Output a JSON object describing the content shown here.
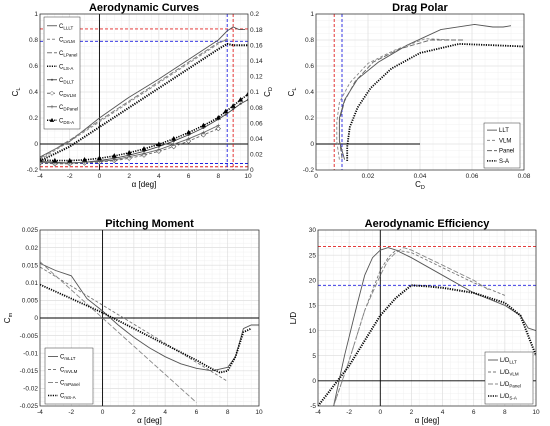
{
  "chart_data": [
    {
      "type": "line",
      "title": "Aerodynamic Curves",
      "xlabel": "α [deg]",
      "ylabel": "C",
      "ylabel_sub": "L",
      "y2label": "C",
      "y2label_sub": "D",
      "xlim": [
        -4,
        10
      ],
      "ylim": [
        -0.2,
        1.0
      ],
      "y2lim": [
        0,
        0.2
      ],
      "xticks": [
        -4,
        -2,
        0,
        2,
        4,
        6,
        8,
        10
      ],
      "yticks": [
        -0.2,
        0,
        0.2,
        0.4,
        0.6,
        0.8,
        1
      ],
      "y2ticks": [
        0,
        0.02,
        0.04,
        0.06,
        0.08,
        0.1,
        0.12,
        0.14,
        0.16,
        0.18,
        0.2
      ],
      "grid": true,
      "legend_position": "top-left",
      "series": [
        {
          "name": "C",
          "sub": "LLLT",
          "axis": "left",
          "color": "#555555",
          "dash": "",
          "marker": "",
          "x": [
            -4,
            -2,
            0,
            2,
            4,
            6,
            8,
            8.6,
            9,
            9.4,
            9.8
          ],
          "y": [
            -0.1,
            0.02,
            0.2,
            0.36,
            0.5,
            0.65,
            0.8,
            0.87,
            0.9,
            0.88,
            0.88
          ]
        },
        {
          "name": "C",
          "sub": "LVLM",
          "axis": "left",
          "color": "#888888",
          "dash": "3,2",
          "marker": "",
          "x": [
            -4,
            -2,
            0,
            2,
            4,
            6,
            8,
            8.6
          ],
          "y": [
            -0.12,
            0.02,
            0.17,
            0.32,
            0.47,
            0.62,
            0.77,
            0.81
          ]
        },
        {
          "name": "C",
          "sub": "LPanel",
          "axis": "left",
          "color": "#777777",
          "dash": "5,2",
          "marker": "",
          "x": [
            -4,
            -2,
            0,
            2,
            4,
            6,
            8,
            8.6
          ],
          "y": [
            -0.11,
            0.03,
            0.18,
            0.33,
            0.48,
            0.63,
            0.78,
            0.8
          ]
        },
        {
          "name": "C",
          "sub": "LS-A",
          "axis": "left",
          "color": "#000000",
          "dash": "1.2,1.2",
          "width": 2,
          "marker": "",
          "x": [
            -4,
            -2,
            0,
            2,
            4,
            6,
            8,
            8.6,
            9,
            10
          ],
          "y": [
            -0.13,
            -0.02,
            0.13,
            0.28,
            0.43,
            0.58,
            0.73,
            0.77,
            0.76,
            0.76
          ]
        },
        {
          "name": "C",
          "sub": "DLLT",
          "axis": "right",
          "color": "#444444",
          "dash": "",
          "marker": "dot",
          "x": [
            -4,
            -3,
            -2,
            -1,
            0,
            1,
            2,
            3,
            4,
            5,
            6,
            7,
            8,
            8.5,
            9,
            9.5,
            10
          ],
          "y": [
            0.011,
            0.01,
            0.009,
            0.01,
            0.012,
            0.015,
            0.019,
            0.024,
            0.03,
            0.037,
            0.045,
            0.054,
            0.065,
            0.071,
            0.078,
            0.085,
            0.09
          ]
        },
        {
          "name": "C",
          "sub": "DVLM",
          "axis": "right",
          "color": "#666666",
          "dash": "3,2",
          "marker": "diamond",
          "x": [
            -4,
            -3,
            -2,
            -1,
            0,
            1,
            2,
            3,
            4,
            5,
            6,
            7,
            8
          ],
          "y": [
            0.009,
            0.008,
            0.008,
            0.009,
            0.01,
            0.012,
            0.015,
            0.019,
            0.024,
            0.03,
            0.037,
            0.045,
            0.053
          ]
        },
        {
          "name": "C",
          "sub": "DPanel",
          "axis": "right",
          "color": "#666666",
          "dash": "",
          "marker": "plus",
          "x": [
            -4,
            -3,
            -2,
            -1,
            0,
            1,
            2,
            3,
            4,
            5,
            6,
            7,
            8
          ],
          "y": [
            0.01,
            0.009,
            0.009,
            0.01,
            0.011,
            0.013,
            0.017,
            0.021,
            0.026,
            0.033,
            0.04,
            0.048,
            0.057
          ]
        },
        {
          "name": "C",
          "sub": "DS-A",
          "axis": "right",
          "color": "#000000",
          "dash": "1.2,1.2",
          "width": 1.6,
          "marker": "triangle",
          "x": [
            -4,
            -3,
            -2,
            -1,
            0,
            1,
            2,
            3,
            4,
            5,
            6,
            7,
            8,
            8.5,
            9,
            9.5,
            10
          ],
          "y": [
            0.013,
            0.012,
            0.012,
            0.013,
            0.015,
            0.018,
            0.022,
            0.027,
            0.033,
            0.04,
            0.048,
            0.057,
            0.067,
            0.075,
            0.082,
            0.09,
            0.097
          ]
        }
      ],
      "refs": [
        {
          "orient": "h",
          "value": 0.885,
          "axis": "left",
          "color": "#e02020"
        },
        {
          "orient": "h",
          "value": 0.79,
          "axis": "left",
          "color": "#2020e0"
        },
        {
          "orient": "h",
          "value": -0.15,
          "axis": "left",
          "color": "#2020e0"
        },
        {
          "orient": "h",
          "value": -0.175,
          "axis": "left",
          "color": "#e02020"
        },
        {
          "orient": "v",
          "value": 9.0,
          "color": "#e02020"
        },
        {
          "orient": "v",
          "value": 8.6,
          "color": "#2020e0"
        }
      ]
    },
    {
      "type": "line",
      "title": "Drag Polar",
      "xlabel": "C",
      "xlabel_sub": "D",
      "ylabel": "C",
      "ylabel_sub": "L",
      "xlim": [
        0,
        0.08
      ],
      "ylim": [
        -0.2,
        1.0
      ],
      "xticks": [
        0,
        0.02,
        0.04,
        0.06,
        0.08
      ],
      "yticks": [
        -0.2,
        0,
        0.2,
        0.4,
        0.6,
        0.8,
        1
      ],
      "grid": true,
      "legend_position": "bottom-right",
      "series": [
        {
          "name": "LLT",
          "color": "#555555",
          "dash": "",
          "x": [
            0.011,
            0.009,
            0.009,
            0.011,
            0.016,
            0.024,
            0.035,
            0.048,
            0.061,
            0.068,
            0.072,
            0.075
          ],
          "y": [
            -0.12,
            0.02,
            0.2,
            0.34,
            0.5,
            0.63,
            0.76,
            0.88,
            0.92,
            0.9,
            0.9,
            0.91
          ]
        },
        {
          "name": "VLM",
          "color": "#888888",
          "dash": "3,2",
          "x": [
            0.009,
            0.008,
            0.008,
            0.009,
            0.013,
            0.02,
            0.03,
            0.042,
            0.053
          ],
          "y": [
            -0.12,
            0.02,
            0.17,
            0.32,
            0.47,
            0.62,
            0.72,
            0.81,
            0.8
          ]
        },
        {
          "name": "Panel",
          "color": "#666666",
          "dash": "5,2",
          "x": [
            0.01,
            0.009,
            0.009,
            0.011,
            0.015,
            0.022,
            0.032,
            0.044,
            0.057
          ],
          "y": [
            -0.11,
            0.03,
            0.18,
            0.33,
            0.48,
            0.63,
            0.73,
            0.8,
            0.8
          ]
        },
        {
          "name": "S-A",
          "color": "#000000",
          "dash": "1.2,1.2",
          "width": 1.8,
          "x": [
            0.012,
            0.012,
            0.013,
            0.016,
            0.021,
            0.029,
            0.04,
            0.055,
            0.068,
            0.08
          ],
          "y": [
            -0.13,
            -0.02,
            0.13,
            0.28,
            0.43,
            0.58,
            0.7,
            0.77,
            0.76,
            0.75
          ]
        }
      ],
      "refs": [
        {
          "orient": "v",
          "value": 0.007,
          "color": "#e02020"
        },
        {
          "orient": "v",
          "value": 0.01,
          "color": "#2020e0"
        }
      ]
    },
    {
      "type": "line",
      "title": "Pitching Moment",
      "xlabel": "α [deg]",
      "ylabel": "C",
      "ylabel_sub": "m",
      "xlim": [
        -4,
        10
      ],
      "ylim": [
        -0.025,
        0.025
      ],
      "xticks": [
        -4,
        -2,
        0,
        2,
        4,
        6,
        8,
        10
      ],
      "yticks": [
        -0.025,
        -0.02,
        -0.015,
        -0.01,
        -0.005,
        0,
        0.005,
        0.01,
        0.015,
        0.02,
        0.025
      ],
      "grid": true,
      "legend_position": "bottom-left",
      "series": [
        {
          "name": "C",
          "sub": "mLLT",
          "color": "#555555",
          "dash": "",
          "x": [
            -4,
            -3,
            -2,
            -1,
            0,
            1,
            2,
            3,
            4,
            5,
            6,
            7,
            8,
            8.5,
            9,
            9.5,
            10
          ],
          "y": [
            0.0155,
            0.0135,
            0.012,
            0.0055,
            0.002,
            -0.002,
            -0.0055,
            -0.0085,
            -0.011,
            -0.013,
            -0.0143,
            -0.015,
            -0.014,
            -0.011,
            -0.003,
            -0.002,
            -0.002
          ]
        },
        {
          "name": "C",
          "sub": "mVLM",
          "color": "#777777",
          "dash": "3,2",
          "x": [
            -4,
            8
          ],
          "y": [
            0.0145,
            -0.018
          ]
        },
        {
          "name": "C",
          "sub": "mPanel",
          "color": "#888888",
          "dash": "5,2",
          "x": [
            -4,
            6
          ],
          "y": [
            0.016,
            -0.024
          ]
        },
        {
          "name": "C",
          "sub": "mS-A",
          "color": "#000000",
          "dash": "1.2,1.2",
          "width": 1.8,
          "x": [
            -4,
            -2,
            0,
            2,
            4,
            6,
            7,
            7.5,
            8,
            8.5,
            9,
            9.5
          ],
          "y": [
            0.0095,
            0.0055,
            0.0015,
            -0.003,
            -0.0075,
            -0.012,
            -0.0145,
            -0.0155,
            -0.015,
            -0.011,
            -0.004,
            -0.003
          ]
        }
      ]
    },
    {
      "type": "line",
      "title": "Aerodynamic Efficiency",
      "xlabel": "α [deg]",
      "ylabel": "L/D",
      "xlim": [
        -4,
        10
      ],
      "ylim": [
        -5,
        30
      ],
      "xticks": [
        -4,
        -2,
        0,
        2,
        4,
        6,
        8,
        10
      ],
      "yticks": [
        -5,
        0,
        5,
        10,
        15,
        20,
        25,
        30
      ],
      "grid": true,
      "legend_position": "bottom-right",
      "series": [
        {
          "name": "L/D",
          "sub": "LLT",
          "color": "#555555",
          "dash": "",
          "x": [
            -3,
            -2.3,
            -1.5,
            -1,
            -0.5,
            0,
            0.5,
            1,
            2,
            4,
            6,
            8,
            9,
            9.5,
            10
          ],
          "y": [
            -5,
            5,
            15,
            21,
            24.5,
            26,
            26.5,
            26,
            24.5,
            21,
            17.5,
            15,
            13,
            10.5,
            10
          ]
        },
        {
          "name": "L/D",
          "sub": "VLM",
          "color": "#777777",
          "dash": "3,2",
          "x": [
            -3,
            -2,
            -1,
            0,
            0.5,
            1,
            2,
            4,
            6,
            8
          ],
          "y": [
            -5,
            4,
            14,
            22,
            24.5,
            26,
            25.5,
            22.5,
            19.5,
            17
          ]
        },
        {
          "name": "L/D",
          "sub": "Panel",
          "color": "#888888",
          "dash": "5,2",
          "x": [
            -3,
            -2,
            -1,
            0,
            0.5,
            1,
            1.5,
            2,
            4,
            6,
            7
          ],
          "y": [
            -5,
            4,
            14,
            21,
            24,
            25.5,
            26.5,
            26,
            23,
            20,
            18
          ]
        },
        {
          "name": "L/D",
          "sub": "S-A",
          "color": "#000000",
          "dash": "1.2,1.2",
          "width": 2,
          "x": [
            -4,
            -3,
            -2,
            -1,
            0,
            1,
            2,
            3,
            4,
            6,
            8,
            9,
            9.5,
            10
          ],
          "y": [
            -5,
            -1,
            3,
            8,
            13,
            16.5,
            19,
            18.8,
            18.5,
            17.5,
            15.5,
            13,
            9,
            5
          ]
        }
      ],
      "refs": [
        {
          "orient": "h",
          "value": 26.7,
          "color": "#e02020"
        },
        {
          "orient": "h",
          "value": 19,
          "color": "#2020e0"
        }
      ]
    }
  ]
}
